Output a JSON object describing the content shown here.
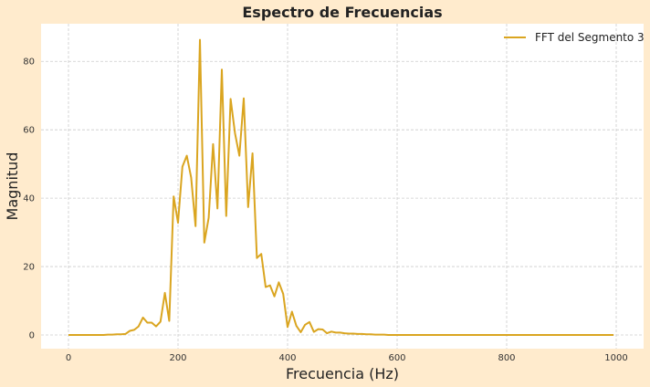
{
  "chart_data": {
    "type": "line",
    "title": "Espectro de Frecuencias",
    "xlabel": "Frecuencia (Hz)",
    "ylabel": "Magnitud",
    "xlim": [
      -50,
      1050
    ],
    "ylim": [
      -4,
      91
    ],
    "xticks": [
      0,
      200,
      400,
      600,
      800,
      1000
    ],
    "yticks": [
      0,
      20,
      40,
      60,
      80
    ],
    "grid": true,
    "legend_position": "top-right",
    "background_color": "#ffebcd",
    "plot_background": "#ffffff",
    "series": [
      {
        "name": "FFT del Segmento 3",
        "color": "#daa520",
        "x": [
          0,
          8,
          16,
          24,
          32,
          40,
          48,
          56,
          64,
          72,
          80,
          88,
          96,
          104,
          112,
          120,
          128,
          136,
          144,
          152,
          160,
          168,
          176,
          184,
          192,
          200,
          208,
          216,
          224,
          232,
          240,
          248,
          256,
          264,
          272,
          280,
          288,
          296,
          304,
          312,
          320,
          328,
          336,
          344,
          352,
          360,
          368,
          376,
          384,
          392,
          400,
          408,
          416,
          424,
          432,
          440,
          448,
          456,
          464,
          472,
          480,
          488,
          496,
          504,
          512,
          520,
          528,
          536,
          544,
          552,
          560,
          568,
          576,
          584,
          592,
          600,
          650,
          700,
          750,
          800,
          850,
          900,
          950,
          995
        ],
        "y": [
          0,
          0,
          0,
          0,
          0,
          0,
          0,
          0,
          0,
          0.1,
          0.1,
          0.2,
          0.2,
          0.3,
          1.2,
          1.5,
          2.5,
          5.1,
          3.6,
          3.6,
          2.5,
          3.9,
          12.3,
          4.1,
          40.5,
          32.8,
          49.2,
          52.4,
          46.0,
          31.8,
          86.3,
          27.0,
          34.3,
          55.8,
          37.0,
          77.6,
          34.8,
          69.0,
          59.0,
          52.4,
          69.2,
          37.4,
          53.1,
          22.5,
          23.7,
          14.0,
          14.5,
          11.3,
          15.4,
          12.0,
          2.3,
          6.8,
          2.7,
          0.8,
          3.0,
          3.8,
          0.9,
          1.7,
          1.6,
          0.5,
          1.0,
          0.7,
          0.7,
          0.5,
          0.4,
          0.4,
          0.3,
          0.3,
          0.2,
          0.2,
          0.1,
          0.1,
          0.1,
          0,
          0,
          0,
          0,
          0,
          0,
          0,
          0,
          0,
          0,
          0
        ]
      }
    ]
  }
}
